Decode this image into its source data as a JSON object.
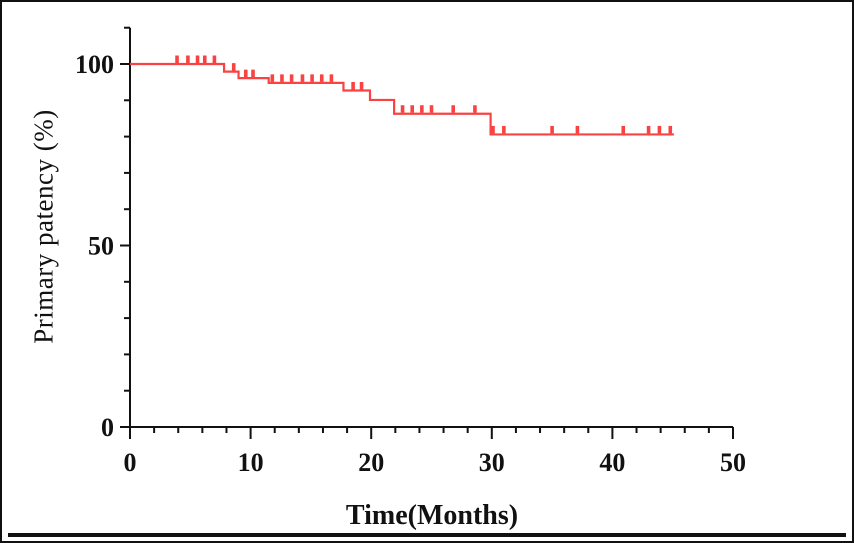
{
  "figure": {
    "kind": "kaplan-meier-survival-plot",
    "title": ""
  },
  "colors": {
    "curve": "#f94343",
    "axis": "#111111",
    "text": "#111111",
    "background": "#ffffff",
    "border": "#111111"
  },
  "chart_data": {
    "type": "line",
    "subtype": "kaplan_meier_step",
    "title": "",
    "xlabel": "Time(Months)",
    "ylabel": "Primary patency (%)",
    "xlim": [
      0,
      50
    ],
    "ylim": [
      0,
      110
    ],
    "x_major_ticks": [
      0,
      10,
      20,
      30,
      40,
      50
    ],
    "x_minor_step": 2,
    "y_major_ticks": [
      0,
      50,
      100
    ],
    "y_minor_step": 10,
    "grid": false,
    "legend": "none",
    "series": [
      {
        "name": "Primary patency",
        "color": "#f94343",
        "end_time": 45.1,
        "steps": [
          {
            "t": 0,
            "p": 100
          },
          {
            "t": 7.8,
            "p": 97.9
          },
          {
            "t": 9.0,
            "p": 96.1
          },
          {
            "t": 11.5,
            "p": 94.8
          },
          {
            "t": 17.7,
            "p": 92.7
          },
          {
            "t": 19.9,
            "p": 90.1
          },
          {
            "t": 21.9,
            "p": 86.3
          },
          {
            "t": 29.9,
            "p": 80.6
          }
        ],
        "censor_marks": [
          {
            "t": 3.9,
            "p": 100
          },
          {
            "t": 4.8,
            "p": 100
          },
          {
            "t": 5.6,
            "p": 100
          },
          {
            "t": 6.2,
            "p": 100
          },
          {
            "t": 7.0,
            "p": 100
          },
          {
            "t": 8.6,
            "p": 97.9
          },
          {
            "t": 9.6,
            "p": 96.1
          },
          {
            "t": 10.2,
            "p": 96.1
          },
          {
            "t": 11.8,
            "p": 94.8
          },
          {
            "t": 12.6,
            "p": 94.8
          },
          {
            "t": 13.4,
            "p": 94.8
          },
          {
            "t": 14.3,
            "p": 94.8
          },
          {
            "t": 15.1,
            "p": 94.8
          },
          {
            "t": 15.9,
            "p": 94.8
          },
          {
            "t": 16.7,
            "p": 94.8
          },
          {
            "t": 18.5,
            "p": 92.7
          },
          {
            "t": 19.2,
            "p": 92.7
          },
          {
            "t": 22.6,
            "p": 86.3
          },
          {
            "t": 23.4,
            "p": 86.3
          },
          {
            "t": 24.2,
            "p": 86.3
          },
          {
            "t": 25.0,
            "p": 86.3
          },
          {
            "t": 26.8,
            "p": 86.3
          },
          {
            "t": 28.6,
            "p": 86.3
          },
          {
            "t": 30.1,
            "p": 80.6
          },
          {
            "t": 31.0,
            "p": 80.6
          },
          {
            "t": 35.0,
            "p": 80.6
          },
          {
            "t": 37.1,
            "p": 80.6
          },
          {
            "t": 40.9,
            "p": 80.6
          },
          {
            "t": 43.0,
            "p": 80.6
          },
          {
            "t": 43.9,
            "p": 80.6
          },
          {
            "t": 44.8,
            "p": 80.6
          }
        ]
      }
    ]
  }
}
